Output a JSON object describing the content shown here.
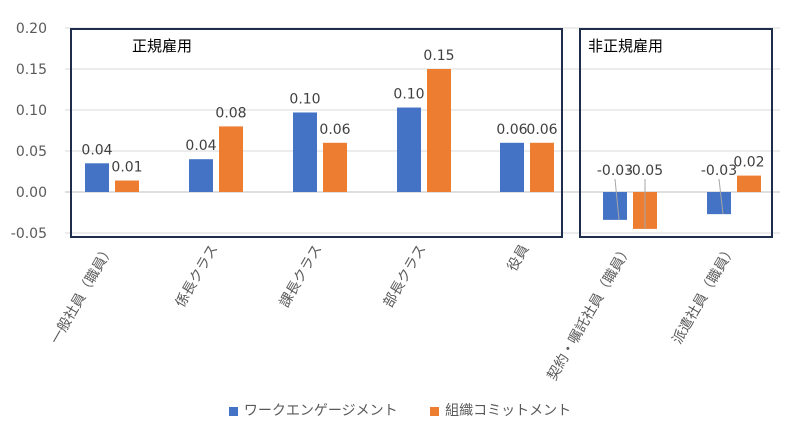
{
  "chart_data": {
    "type": "bar",
    "categories": [
      "一般社員（職員）",
      "係長クラス",
      "課長クラス",
      "部長クラス",
      "役員",
      "契約・嘱託社員（職員）",
      "派遣社員（職員）"
    ],
    "series": [
      {
        "name": "ワークエンゲージメント",
        "color": "#4472C4",
        "values": [
          0.035,
          0.04,
          0.097,
          0.103,
          0.06,
          -0.034,
          -0.027
        ],
        "labels": [
          "0.04",
          "0.04",
          "0.10",
          "0.10",
          "0.06",
          "-0.03",
          "-0.03"
        ]
      },
      {
        "name": "組織コミットメント",
        "color": "#ED7D31",
        "values": [
          0.014,
          0.08,
          0.06,
          0.15,
          0.06,
          -0.045,
          0.02
        ],
        "labels": [
          "0.01",
          "0.08",
          "0.06",
          "0.15",
          "0.06",
          "-0.05",
          "0.02"
        ]
      }
    ],
    "yticks": [
      "0.20",
      "0.15",
      "0.10",
      "0.05",
      "0.00",
      "-0.05"
    ],
    "ylim": [
      -0.05,
      0.2
    ],
    "groups": [
      {
        "label": "正規雇用"
      },
      {
        "label": "非正規雇用"
      }
    ],
    "legend_position": "bottom"
  }
}
